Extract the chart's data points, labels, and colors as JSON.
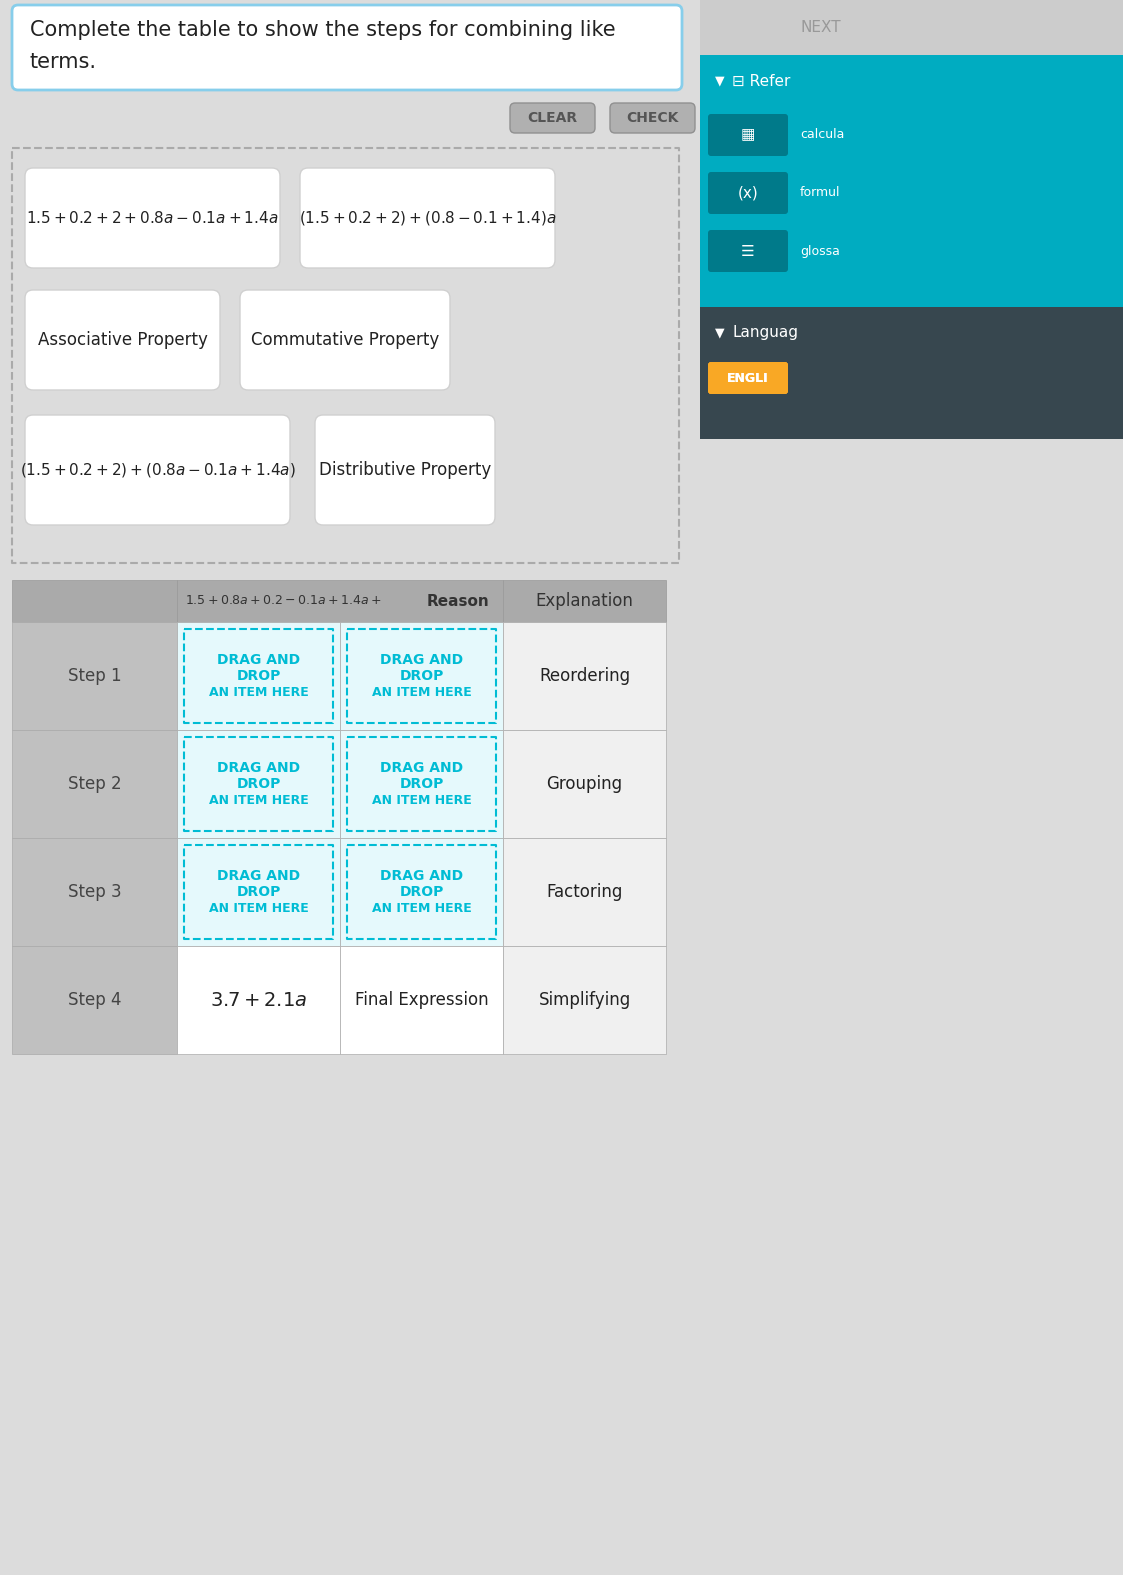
{
  "bg_color": "#dcdcdc",
  "title_line1": "Complete the table to show the steps for combining like",
  "title_line2": "terms.",
  "btn_labels": [
    "CLEAR",
    "CHECK"
  ],
  "drag_items": [
    {
      "text": "$1.5 + 0.2 + 2 + 0.8a - 0.1a + 1.4a$",
      "row": 0,
      "col": 0
    },
    {
      "text": "$(1.5 + 0.2 + 2) + (0.8 - 0.1 + 1.4)a$",
      "row": 0,
      "col": 1
    },
    {
      "text": "Associative Property",
      "row": 1,
      "col": 0
    },
    {
      "text": "Commutative Property",
      "row": 1,
      "col": 1
    },
    {
      "text": "$(1.5 + 0.2 + 2) + (0.8a - 0.1a + 1.4a)$",
      "row": 2,
      "col": 0
    },
    {
      "text": "Distributive Property",
      "row": 2,
      "col": 1
    }
  ],
  "steps": [
    "Step 1",
    "Step 2",
    "Step 3",
    "Step 4"
  ],
  "explanations": [
    "Reordering",
    "Grouping",
    "Factoring",
    "Simplifying"
  ],
  "step4_expr": "$3.7 + 2.1a$",
  "step4_reason": "Final Expression",
  "header_left": "$1.5 + 0.8a + 0.2 - 0.1a + 1.4a +$Reason",
  "header_right": "Explanation",
  "drag_color": "#00bcd4",
  "drag_bg": "#e5f9fc",
  "sidebar_teal": "#00acc1",
  "sidebar_dark": "#37474f",
  "engli_color": "#f9a825",
  "white": "#ffffff",
  "btn_bg": "#b0b0b0",
  "step_bg": "#c0c0c0",
  "header_bg": "#aaaaaa",
  "expl_bg": "#f0f0f0",
  "pool_border": "#aaaaaa",
  "item_border": "#d0d0d0"
}
